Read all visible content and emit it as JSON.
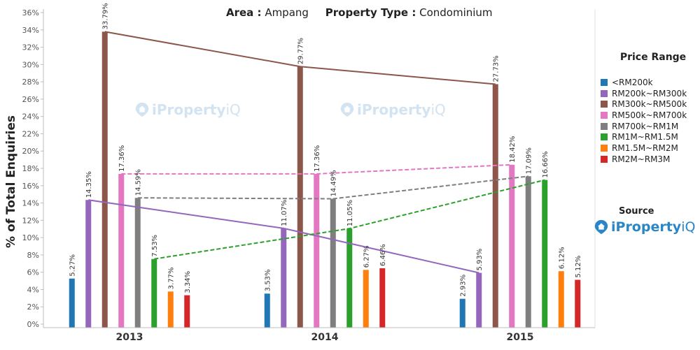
{
  "title": {
    "area_label": "Area :",
    "area_value": "Ampang",
    "type_label": "Property Type :",
    "type_value": "Condominium"
  },
  "legend": {
    "title": "Price Range"
  },
  "source": {
    "label": "Source"
  },
  "logo": {
    "brand_a": "iProperty",
    "brand_b": "iQ"
  },
  "watermark": {
    "brand_a": "iProperty",
    "brand_b": "iQ"
  },
  "chart_data": {
    "type": "bar",
    "ylabel": "% of Total Enquiries",
    "xlabel": "",
    "ylim": [
      0,
      36
    ],
    "yticks": [
      "0%",
      "2%",
      "4%",
      "6%",
      "8%",
      "10%",
      "12%",
      "14%",
      "16%",
      "18%",
      "20%",
      "22%",
      "24%",
      "26%",
      "28%",
      "30%",
      "32%",
      "34%",
      "36%"
    ],
    "categories": [
      "2013",
      "2014",
      "2015"
    ],
    "legend_position": "right",
    "grid": false,
    "series": [
      {
        "name": "<RM200k",
        "color": "#1f77b4",
        "values": [
          5.27,
          3.53,
          2.93
        ],
        "labels": [
          "5.27%",
          "3.53%",
          "2.93%"
        ],
        "trend": false
      },
      {
        "name": "RM200k~RM300k",
        "color": "#9467bd",
        "values": [
          14.35,
          11.07,
          5.93
        ],
        "labels": [
          "14.35%",
          "11.07%",
          "5.93%"
        ],
        "trend": true
      },
      {
        "name": "RM300k~RM500k",
        "color": "#8c564b",
        "values": [
          33.79,
          29.77,
          27.73
        ],
        "labels": [
          "33.79%",
          "29.77%",
          "27.73%"
        ],
        "trend": true
      },
      {
        "name": "RM500k~RM700k",
        "color": "#e377c2",
        "values": [
          17.36,
          17.36,
          18.42
        ],
        "labels": [
          "17.36%",
          "17.36%",
          "18.42%"
        ],
        "trend": true
      },
      {
        "name": "RM700k~RM1M",
        "color": "#7f7f7f",
        "values": [
          14.59,
          14.49,
          17.09
        ],
        "labels": [
          "14.59%",
          "14.49%",
          "17.09%"
        ],
        "trend": true
      },
      {
        "name": "RM1M~RM1.5M",
        "color": "#2ca02c",
        "values": [
          7.53,
          11.05,
          16.66
        ],
        "labels": [
          "7.53%",
          "11.05%",
          "16.66%"
        ],
        "trend": true
      },
      {
        "name": "RM1.5M~RM2M",
        "color": "#ff7f0e",
        "values": [
          3.77,
          6.27,
          6.12
        ],
        "labels": [
          "3.77%",
          "6.27%",
          "6.12%"
        ],
        "trend": false
      },
      {
        "name": "RM2M~RM3M",
        "color": "#d62728",
        "values": [
          3.34,
          6.46,
          5.12
        ],
        "labels": [
          "3.34%",
          "6.46%",
          "5.12%"
        ],
        "trend": false
      }
    ]
  }
}
